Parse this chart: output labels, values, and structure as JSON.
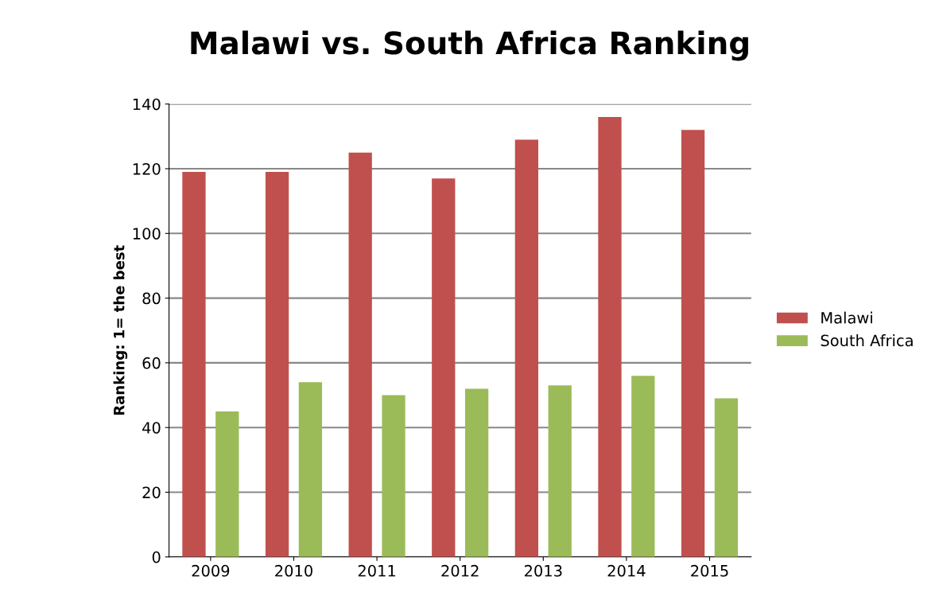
{
  "chart_data": {
    "type": "bar",
    "title": "Malawi vs. South Africa Ranking",
    "ylabel": "Ranking: 1= the best",
    "categories": [
      "2009",
      "2010",
      "2011",
      "2012",
      "2013",
      "2014",
      "2015"
    ],
    "series": [
      {
        "name": "Malawi",
        "color": "#c0504d",
        "values": [
          119,
          119,
          125,
          117,
          129,
          136,
          132
        ]
      },
      {
        "name": "South Africa",
        "color": "#9bbb59",
        "values": [
          45,
          54,
          50,
          52,
          53,
          56,
          49
        ]
      }
    ],
    "ylim": [
      0,
      140
    ],
    "yticks": [
      0,
      20,
      40,
      60,
      80,
      100,
      120,
      140
    ],
    "grid": "y",
    "legend": "right"
  }
}
